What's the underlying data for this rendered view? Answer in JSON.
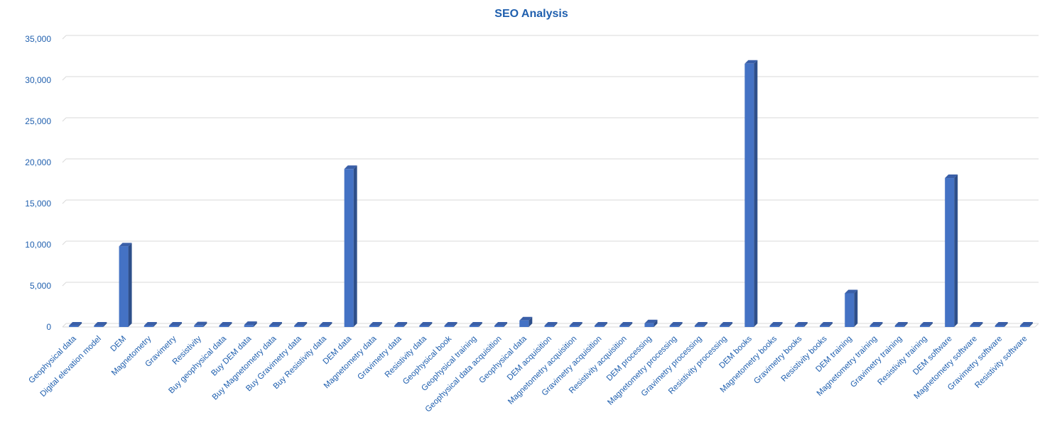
{
  "chart_data": {
    "type": "bar",
    "title": "SEO Analysis",
    "xlabel": "",
    "ylabel": "",
    "ylim": [
      0,
      35000
    ],
    "yticks": [
      0,
      5000,
      10000,
      15000,
      20000,
      25000,
      30000,
      35000
    ],
    "ytick_labels": [
      "0",
      "5,000",
      "10,000",
      "15,000",
      "20,000",
      "25,000",
      "30,000",
      "35,000"
    ],
    "grid": true,
    "legend": "none",
    "style": "3d-column",
    "colors": {
      "bar_front": "#4472c4",
      "bar_side": "#2e4f8a",
      "bar_top": "#3a5fa8",
      "text": "#1f5fae",
      "grid": "#d9d9d9"
    },
    "categories": [
      "Geophysical data",
      "Digital elevation model",
      "DEM",
      "Magnetometry",
      "Gravimetry",
      "Resistivity",
      "Buy geophysical data",
      "Buy DEM data",
      "Buy Magnetometry data",
      "Buy Gravimetry data",
      "Buy Resistivity data",
      "DEM data",
      "Magnetometry data",
      "Gravimetry data",
      "Resistivity data",
      "Geophysical book",
      "Geophysical training",
      "Geophysical data acquisition",
      "Geophysical data",
      "DEM acquisition",
      "Magnetometry acquisition",
      "Gravimetry acquisition",
      "Resistivity acquisition",
      "DEM processing",
      "Magnetometry processing",
      "Gravimetry processing",
      "Resistivity processing",
      "DEM books",
      "Magnetometry books",
      "Gravimetry books",
      "Resistivity books",
      "DEM training",
      "Magnetometry training",
      "Gravimetry training",
      "Resistivity training",
      "DEM software",
      "Magnetometry software",
      "Gravimetry software",
      "Resistivity software"
    ],
    "values": [
      50,
      150,
      9800,
      20,
      40,
      200,
      40,
      250,
      50,
      80,
      150,
      19200,
      30,
      60,
      40,
      150,
      60,
      30,
      800,
      150,
      20,
      30,
      40,
      450,
      20,
      20,
      60,
      32000,
      20,
      30,
      80,
      4100,
      20,
      20,
      40,
      18100,
      20,
      20,
      20
    ]
  }
}
